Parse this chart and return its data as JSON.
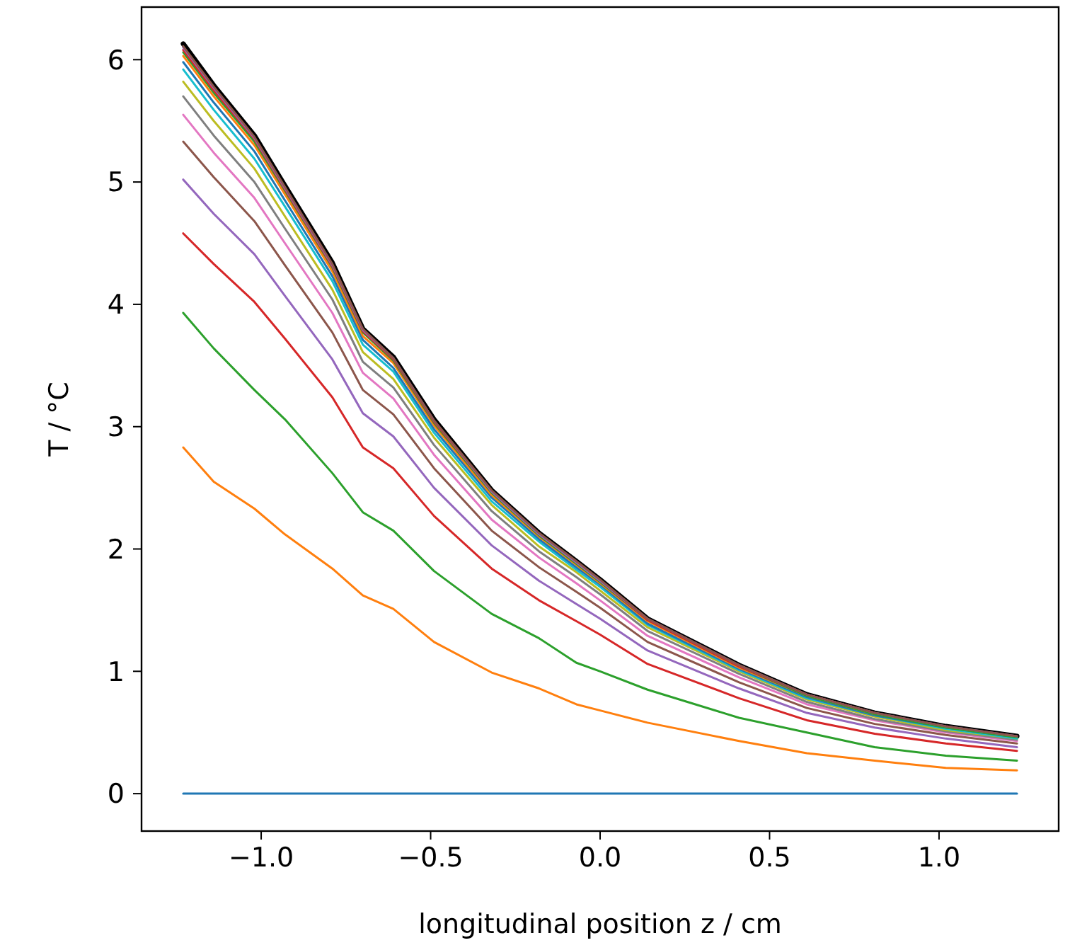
{
  "chart_data": {
    "type": "line",
    "xlabel": "longitudinal position z / cm",
    "ylabel": "T / °C",
    "x": [
      -1.23,
      -1.14,
      -1.02,
      -0.93,
      -0.79,
      -0.7,
      -0.61,
      -0.49,
      -0.32,
      -0.18,
      -0.07,
      0.0,
      0.14,
      0.41,
      0.61,
      0.81,
      1.02,
      1.23
    ],
    "xlim": [
      -1.353,
      1.353
    ],
    "ylim": [
      -0.306,
      6.43
    ],
    "xticks": [
      {
        "value": -1,
        "label": "−1.0"
      },
      {
        "value": -0.5,
        "label": "−0.5"
      },
      {
        "value": 0,
        "label": "0.0"
      },
      {
        "value": 0.5,
        "label": "0.5"
      },
      {
        "value": 1,
        "label": "1.0"
      }
    ],
    "yticks": [
      0,
      1,
      2,
      3,
      4,
      5,
      6
    ],
    "series": [
      {
        "color": "#000000",
        "values": [
          6.13,
          5.79,
          5.38,
          4.97,
          4.34,
          3.8,
          3.57,
          3.06,
          2.48,
          2.13,
          1.9,
          1.75,
          1.43,
          1.05,
          0.81,
          0.66,
          0.55,
          0.47
        ]
      },
      {
        "color": "#1f77b4",
        "values": [
          0,
          0,
          0,
          0,
          0,
          0,
          0,
          0,
          0,
          0,
          0,
          0,
          0,
          0,
          0,
          0,
          0,
          0
        ]
      },
      {
        "color": "#ff7f0e",
        "values": [
          2.83,
          2.55,
          2.33,
          2.12,
          1.84,
          1.62,
          1.51,
          1.24,
          0.99,
          0.86,
          0.73,
          0.68,
          0.58,
          0.43,
          0.33,
          0.27,
          0.21,
          0.19
        ]
      },
      {
        "color": "#2ca02c",
        "values": [
          3.93,
          3.64,
          3.3,
          3.06,
          2.62,
          2.3,
          2.15,
          1.82,
          1.47,
          1.27,
          1.07,
          1.0,
          0.85,
          0.62,
          0.5,
          0.38,
          0.31,
          0.27
        ]
      },
      {
        "color": "#d62728",
        "values": [
          4.58,
          4.33,
          4.02,
          3.72,
          3.24,
          2.83,
          2.66,
          2.27,
          1.84,
          1.58,
          1.41,
          1.3,
          1.06,
          0.78,
          0.6,
          0.49,
          0.41,
          0.35
        ]
      },
      {
        "color": "#9467bd",
        "values": [
          5.02,
          4.74,
          4.41,
          4.07,
          3.55,
          3.11,
          2.92,
          2.5,
          2.03,
          1.74,
          1.55,
          1.43,
          1.17,
          0.86,
          0.66,
          0.54,
          0.45,
          0.38
        ]
      },
      {
        "color": "#8c564b",
        "values": [
          5.33,
          5.04,
          4.68,
          4.32,
          3.77,
          3.3,
          3.1,
          2.66,
          2.15,
          1.85,
          1.65,
          1.52,
          1.24,
          0.91,
          0.7,
          0.57,
          0.48,
          0.41
        ]
      },
      {
        "color": "#e377c2",
        "values": [
          5.55,
          5.24,
          4.87,
          4.5,
          3.93,
          3.44,
          3.23,
          2.77,
          2.24,
          1.93,
          1.72,
          1.58,
          1.29,
          0.95,
          0.73,
          0.6,
          0.5,
          0.43
        ]
      },
      {
        "color": "#7f7f7f",
        "values": [
          5.7,
          5.38,
          5.0,
          4.62,
          4.04,
          3.53,
          3.32,
          2.85,
          2.31,
          1.98,
          1.77,
          1.63,
          1.33,
          0.98,
          0.75,
          0.61,
          0.51,
          0.44
        ]
      },
      {
        "color": "#bcbd22",
        "values": [
          5.82,
          5.5,
          5.11,
          4.72,
          4.12,
          3.61,
          3.39,
          2.91,
          2.36,
          2.02,
          1.81,
          1.66,
          1.36,
          1.0,
          0.77,
          0.63,
          0.52,
          0.45
        ]
      },
      {
        "color": "#17becf",
        "values": [
          5.92,
          5.59,
          5.19,
          4.8,
          4.19,
          3.67,
          3.45,
          2.95,
          2.39,
          2.06,
          1.83,
          1.69,
          1.38,
          1.01,
          0.78,
          0.64,
          0.53,
          0.45
        ]
      },
      {
        "color": "#1f77b4",
        "values": [
          5.98,
          5.65,
          5.25,
          4.85,
          4.23,
          3.71,
          3.48,
          2.98,
          2.42,
          2.08,
          1.85,
          1.71,
          1.39,
          1.02,
          0.79,
          0.64,
          0.54,
          0.46
        ]
      },
      {
        "color": "#ff7f0e",
        "values": [
          6.03,
          5.7,
          5.3,
          4.9,
          4.27,
          3.74,
          3.52,
          3.01,
          2.44,
          2.1,
          1.87,
          1.72,
          1.41,
          1.03,
          0.8,
          0.65,
          null,
          null
        ]
      },
      {
        "color": "#2ca02c",
        "values": [
          6.06,
          5.73,
          5.33,
          4.93,
          4.3,
          3.77,
          3.54,
          3.03,
          2.46,
          2.11,
          1.88,
          1.73,
          1.42,
          1.04,
          0.8,
          0.65,
          0.54,
          0.46
        ]
      },
      {
        "color": "#d62728",
        "values": [
          6.08,
          5.75,
          5.35,
          4.94,
          4.31,
          3.78,
          3.55,
          3.04,
          2.47,
          2.12,
          1.89,
          1.74,
          1.42,
          1.04,
          0.81,
          0.66,
          null,
          null
        ]
      },
      {
        "color": "#9467bd",
        "values": [
          6.1,
          5.77,
          5.36,
          4.95,
          4.32,
          3.79,
          3.56,
          3.05,
          2.47,
          2.12,
          1.89,
          1.74,
          1.43,
          1.05,
          0.81,
          0.66,
          0.55,
          0.47
        ]
      },
      {
        "color": "#8c564b",
        "values": [
          6.11,
          5.78,
          5.37,
          4.96,
          4.33,
          3.8,
          3.56,
          3.05,
          2.48,
          2.13,
          1.9,
          1.75,
          1.43,
          1.05,
          0.81,
          0.66,
          0.55,
          0.47
        ]
      }
    ]
  }
}
